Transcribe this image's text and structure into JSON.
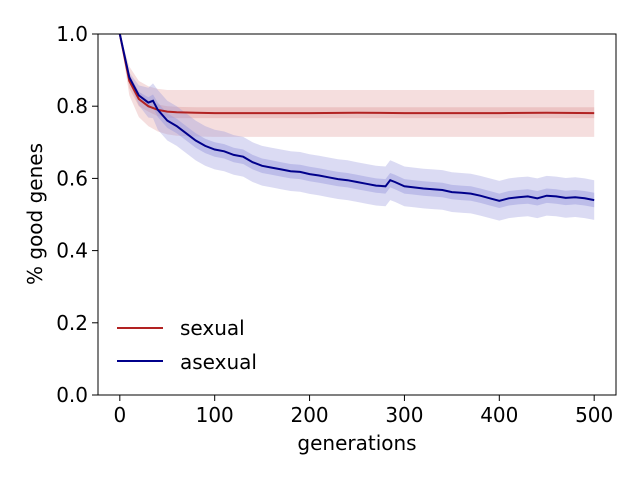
{
  "chart_data": {
    "type": "line",
    "title": "",
    "xlabel": "generations",
    "ylabel": "% good genes",
    "xlim": [
      -23,
      523
    ],
    "ylim": [
      0.0,
      1.0
    ],
    "x_ticks": [
      0,
      100,
      200,
      300,
      400,
      500
    ],
    "x_tick_labels": [
      "0",
      "100",
      "200",
      "300",
      "400",
      "500"
    ],
    "y_ticks": [
      0.0,
      0.2,
      0.4,
      0.6,
      0.8,
      1.0
    ],
    "y_tick_labels": [
      "0.0",
      "0.2",
      "0.4",
      "0.6",
      "0.8",
      "1.0"
    ],
    "grid": false,
    "legend_position": "lower-left",
    "series": [
      {
        "name": "sexual",
        "color": "#b22222",
        "band_color": "#e3a1a1",
        "x": [
          0,
          10,
          20,
          30,
          40,
          50,
          60,
          80,
          100,
          150,
          200,
          250,
          300,
          350,
          400,
          450,
          500
        ],
        "mean": [
          1.0,
          0.87,
          0.82,
          0.8,
          0.79,
          0.785,
          0.783,
          0.782,
          0.781,
          0.781,
          0.781,
          0.782,
          0.781,
          0.781,
          0.781,
          0.782,
          0.781
        ],
        "inner_low": [
          1.0,
          0.85,
          0.8,
          0.785,
          0.772,
          0.768,
          0.767,
          0.767,
          0.767,
          0.767,
          0.767,
          0.767,
          0.767,
          0.767,
          0.767,
          0.767,
          0.767
        ],
        "inner_high": [
          1.0,
          0.89,
          0.84,
          0.815,
          0.805,
          0.8,
          0.798,
          0.797,
          0.797,
          0.797,
          0.797,
          0.797,
          0.797,
          0.797,
          0.797,
          0.797,
          0.797
        ],
        "outer_low": [
          1.0,
          0.83,
          0.77,
          0.745,
          0.73,
          0.722,
          0.718,
          0.716,
          0.715,
          0.715,
          0.715,
          0.715,
          0.715,
          0.715,
          0.715,
          0.715,
          0.715
        ],
        "outer_high": [
          1.0,
          0.91,
          0.87,
          0.855,
          0.848,
          0.845,
          0.845,
          0.845,
          0.845,
          0.845,
          0.845,
          0.845,
          0.845,
          0.845,
          0.845,
          0.845,
          0.845
        ]
      },
      {
        "name": "asexual",
        "color": "#00008b",
        "band_color": "#9999dd",
        "x": [
          0,
          10,
          20,
          30,
          35,
          40,
          50,
          60,
          70,
          80,
          90,
          100,
          110,
          120,
          130,
          140,
          150,
          160,
          170,
          180,
          190,
          200,
          210,
          220,
          230,
          240,
          250,
          260,
          270,
          280,
          285,
          290,
          300,
          310,
          320,
          330,
          340,
          350,
          360,
          370,
          380,
          390,
          400,
          410,
          420,
          430,
          440,
          450,
          460,
          470,
          480,
          490,
          500
        ],
        "mean": [
          1.0,
          0.88,
          0.83,
          0.81,
          0.815,
          0.79,
          0.76,
          0.745,
          0.725,
          0.705,
          0.69,
          0.68,
          0.675,
          0.665,
          0.66,
          0.645,
          0.635,
          0.63,
          0.625,
          0.62,
          0.618,
          0.612,
          0.608,
          0.603,
          0.598,
          0.595,
          0.59,
          0.585,
          0.58,
          0.578,
          0.595,
          0.59,
          0.578,
          0.575,
          0.572,
          0.57,
          0.568,
          0.562,
          0.56,
          0.558,
          0.552,
          0.545,
          0.538,
          0.545,
          0.548,
          0.55,
          0.545,
          0.552,
          0.55,
          0.546,
          0.548,
          0.545,
          0.54
        ],
        "half_inner": 0.02,
        "half_outer": 0.055
      }
    ]
  }
}
